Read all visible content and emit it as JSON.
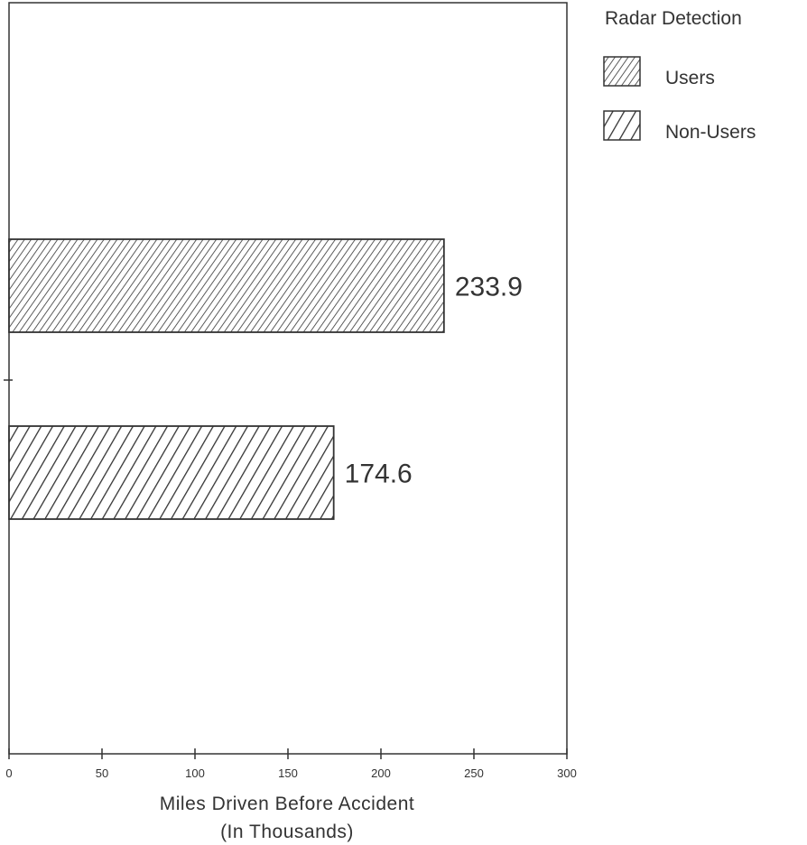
{
  "chart_data": {
    "type": "bar",
    "orientation": "horizontal",
    "series": [
      {
        "name": "Users",
        "value": 233.9,
        "value_label": "233.9",
        "pattern": "fine-hatch"
      },
      {
        "name": "Non-Users",
        "value": 174.6,
        "value_label": "174.6",
        "pattern": "coarse-hatch"
      }
    ],
    "xlim": [
      0,
      300
    ],
    "xticks": [
      "0",
      "50",
      "100",
      "150",
      "200",
      "250",
      "300"
    ],
    "xlabel_line1": "Miles Driven Before Accident",
    "xlabel_line2": "(In Thousands)",
    "legend_title": "Radar Detection",
    "legend_position": "top-right",
    "grid": false
  },
  "colors": {
    "ink": "#333333",
    "background": "#ffffff"
  }
}
